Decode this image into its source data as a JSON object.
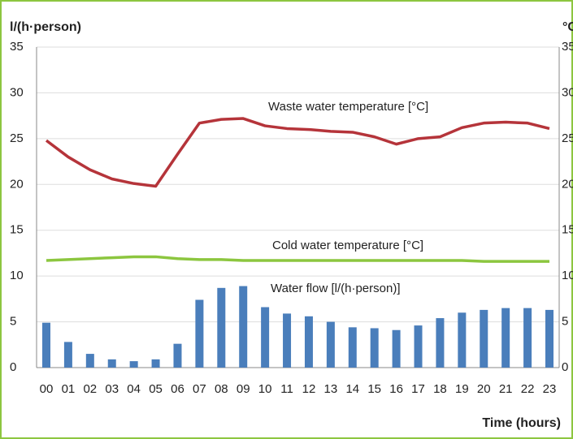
{
  "chart_data": {
    "type": "bar_line",
    "ylabel": "l/(h·person)",
    "y2label": "°C",
    "xlabel": "Time (hours)",
    "categories": [
      "00",
      "01",
      "02",
      "03",
      "04",
      "05",
      "06",
      "07",
      "08",
      "09",
      "10",
      "11",
      "12",
      "13",
      "14",
      "15",
      "16",
      "17",
      "18",
      "19",
      "20",
      "21",
      "22",
      "23"
    ],
    "series": [
      {
        "name": "Water flow [l/(h·person)]",
        "type": "bar",
        "color": "#4a7ebb",
        "values": [
          4.9,
          2.8,
          1.5,
          0.9,
          0.7,
          0.9,
          2.6,
          7.4,
          8.7,
          8.9,
          6.6,
          5.9,
          5.6,
          5.0,
          4.4,
          4.3,
          4.1,
          4.6,
          5.4,
          6.0,
          6.3,
          6.5,
          6.5,
          6.3
        ]
      },
      {
        "name": "Waste water temperature [°C]",
        "type": "line",
        "axis": "y2",
        "color": "#b5343a",
        "values": [
          24.8,
          23.0,
          21.6,
          20.6,
          20.1,
          19.8,
          23.3,
          26.7,
          27.1,
          27.2,
          26.4,
          26.1,
          26.0,
          25.8,
          25.7,
          25.2,
          24.4,
          25.0,
          25.2,
          26.2,
          26.7,
          26.8,
          26.7,
          26.1
        ]
      },
      {
        "name": "Cold water temperature [°C]",
        "type": "line",
        "axis": "y2",
        "color": "#8cc63f",
        "values": [
          11.7,
          11.8,
          11.9,
          12.0,
          12.1,
          12.1,
          11.9,
          11.8,
          11.8,
          11.7,
          11.7,
          11.7,
          11.7,
          11.7,
          11.7,
          11.7,
          11.7,
          11.7,
          11.7,
          11.7,
          11.6,
          11.6,
          11.6,
          11.6
        ]
      }
    ],
    "ylim": [
      0,
      35
    ],
    "yticks": [
      0,
      5,
      10,
      15,
      20,
      25,
      30,
      35
    ],
    "y2lim": [
      0,
      35
    ],
    "y2ticks": [
      0,
      5,
      10,
      15,
      20,
      25,
      30,
      35
    ],
    "grid": true
  }
}
